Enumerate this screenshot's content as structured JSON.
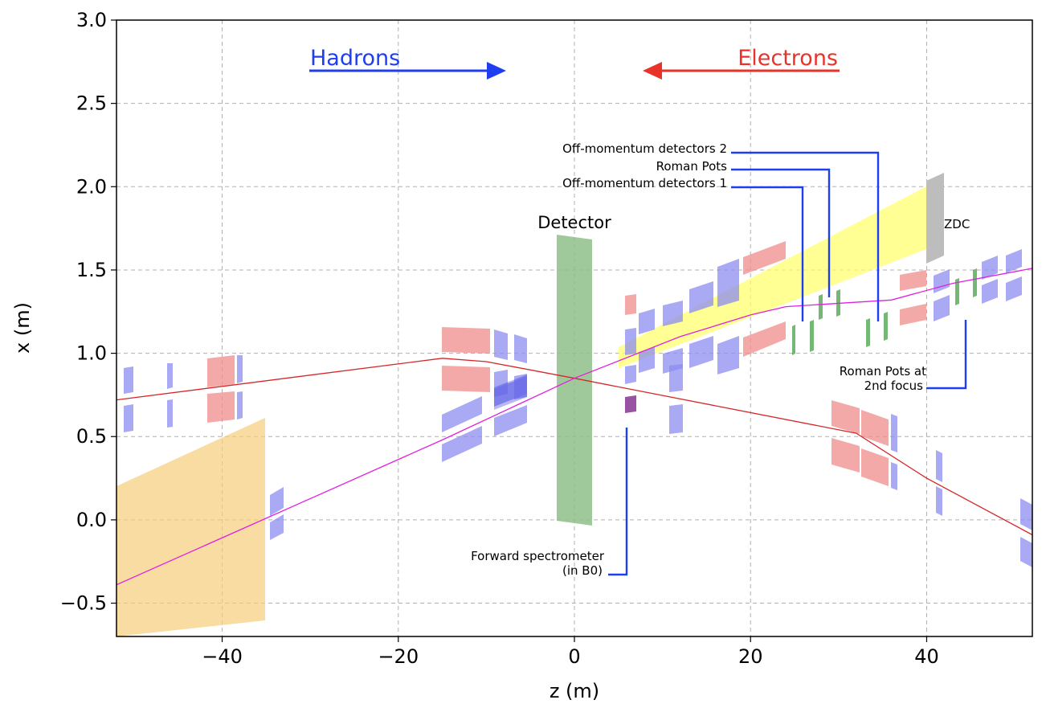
{
  "chart_data": {
    "type": "line",
    "title": "",
    "xlabel": "z (m)",
    "ylabel": "x (m)",
    "xlim": [
      -52,
      52
    ],
    "ylim": [
      -0.7,
      3.0
    ],
    "x_ticks": [
      -40,
      -20,
      0,
      20,
      40
    ],
    "y_ticks": [
      -0.5,
      0.0,
      0.5,
      1.0,
      1.5,
      2.0,
      2.5,
      3.0
    ],
    "x_tick_labels": [
      "−40",
      "−20",
      "0",
      "20",
      "40"
    ],
    "y_tick_labels": [
      "−0.5",
      "0.0",
      "0.5",
      "1.0",
      "1.5",
      "2.0",
      "2.5",
      "3.0"
    ],
    "grid": true,
    "colors": {
      "electron_beam": "#d62728",
      "hadron_beam": "#e020e0",
      "hadron_arrow": "#1f3ef0",
      "electron_arrow": "#e8332a",
      "callout": "#1f3ef0",
      "dipole": "#f08c8c",
      "quadrupole": "#8c8cf0",
      "detector": "#8fc08a",
      "zdc": "#bdbdbd",
      "acceptance": "#ffff66",
      "rear_region": "#f5cd7a"
    },
    "series": [
      {
        "name": "Electron beam",
        "role": "electron",
        "x": [
          -52,
          -15,
          -10,
          0,
          32,
          40,
          52
        ],
        "y": [
          0.72,
          0.97,
          0.95,
          0.85,
          0.52,
          0.25,
          -0.09
        ]
      },
      {
        "name": "Hadron beam",
        "role": "hadron",
        "x": [
          -52,
          -15,
          0,
          12,
          20,
          24,
          36,
          43,
          52
        ],
        "y": [
          -0.39,
          0.48,
          0.85,
          1.1,
          1.23,
          1.28,
          1.32,
          1.42,
          1.51
        ]
      }
    ],
    "annotations": {
      "hadrons": "Hadrons",
      "electrons": "Electrons",
      "detector": "Detector",
      "zdc": "ZDC",
      "off_momentum_2": "Off-momentum detectors 2",
      "roman_pots": "Roman Pots",
      "off_momentum_1": "Off-momentum detectors 1",
      "roman_pots_2nd_line1": "Roman Pots at",
      "roman_pots_2nd_line2": "2nd focus",
      "forward_spec_line1": "Forward spectrometer",
      "forward_spec_line2": "(in B0)"
    }
  }
}
